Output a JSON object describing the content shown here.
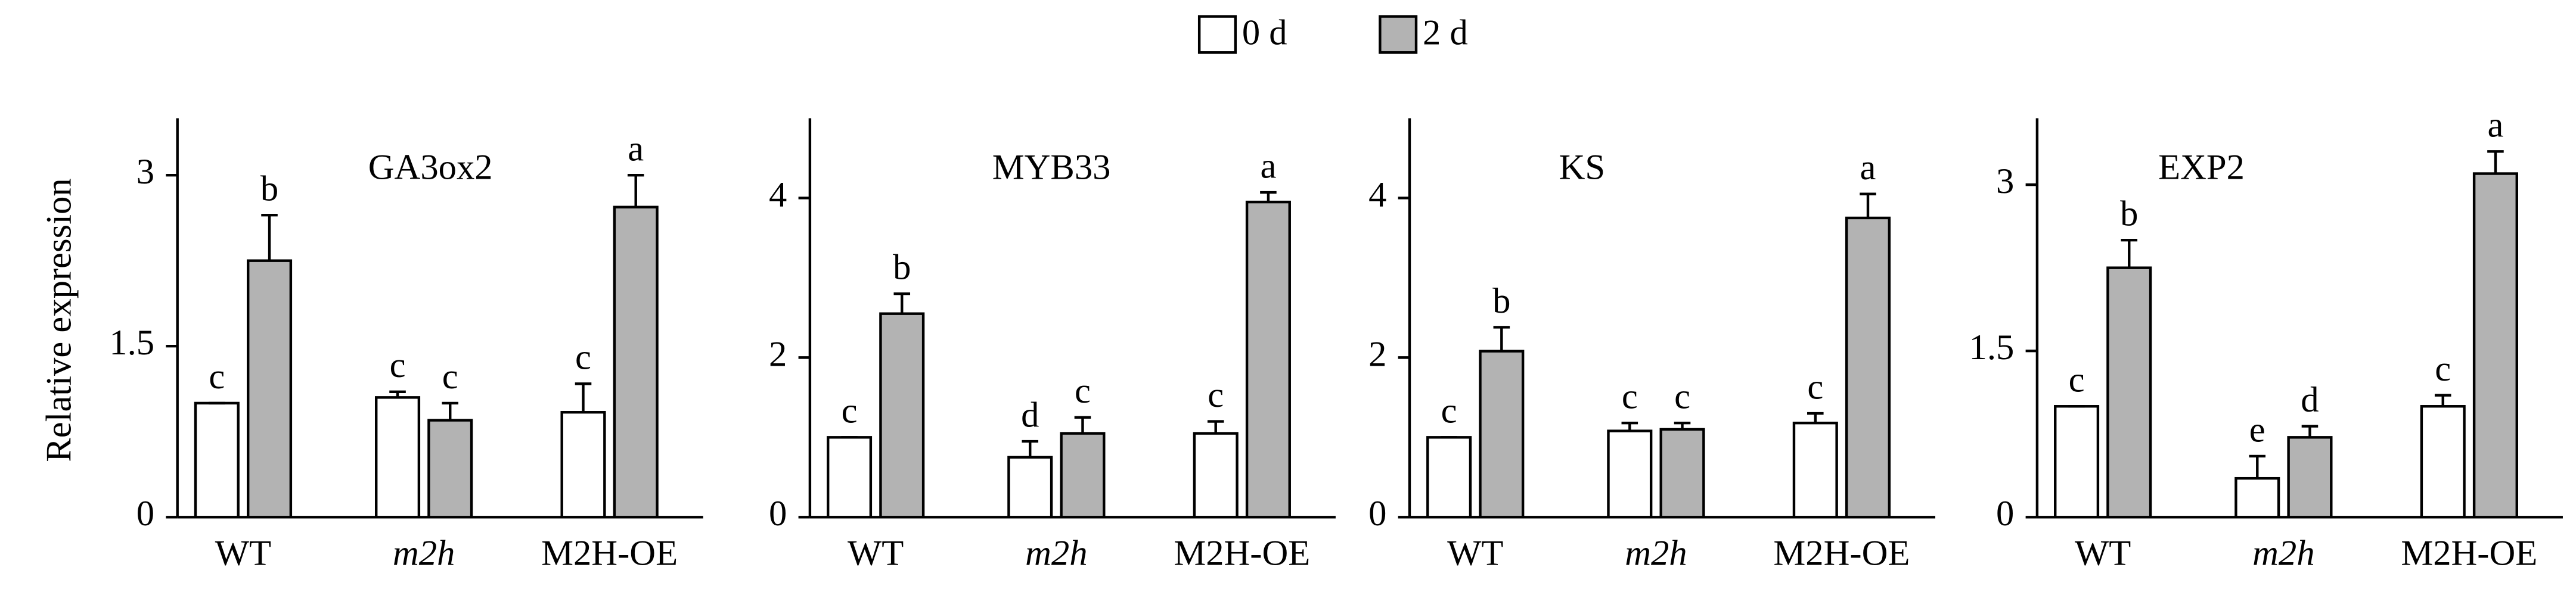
{
  "chart_data": [
    {
      "type": "bar",
      "title": "GA3ox2",
      "y_label": "Relative expression",
      "categories": [
        "WT",
        "m2h",
        "M2H-OE"
      ],
      "ylim": [
        0,
        3.5
      ],
      "yticks": [
        0,
        1.5,
        3
      ],
      "series": [
        {
          "name": "0 d",
          "color": "#ffffff",
          "values": [
            1.0,
            1.05,
            0.92
          ],
          "errors": [
            0,
            0.05,
            0.25
          ],
          "letters": [
            "c",
            "c",
            "c"
          ]
        },
        {
          "name": "2 d",
          "color": "#b3b3b3",
          "values": [
            2.25,
            0.85,
            2.72
          ],
          "errors": [
            0.4,
            0.15,
            0.28
          ],
          "letters": [
            "b",
            "c",
            "a"
          ]
        }
      ]
    },
    {
      "type": "bar",
      "title": "MYB33",
      "categories": [
        "WT",
        "m2h",
        "M2H-OE"
      ],
      "ylim": [
        0,
        5
      ],
      "yticks": [
        0,
        2,
        4
      ],
      "series": [
        {
          "color": "#ffffff",
          "values": [
            1.0,
            0.75,
            1.05
          ],
          "errors": [
            0,
            0.2,
            0.15
          ],
          "letters": [
            "c",
            "d",
            "c"
          ]
        },
        {
          "color": "#b3b3b3",
          "values": [
            2.55,
            1.05,
            3.95
          ],
          "errors": [
            0.25,
            0.2,
            0.12
          ],
          "letters": [
            "b",
            "c",
            "a"
          ]
        }
      ]
    },
    {
      "type": "bar",
      "title": "KS",
      "categories": [
        "WT",
        "m2h",
        "M2H-OE"
      ],
      "ylim": [
        0,
        5
      ],
      "yticks": [
        0,
        2,
        4
      ],
      "series": [
        {
          "color": "#ffffff",
          "values": [
            1.0,
            1.08,
            1.18
          ],
          "errors": [
            0,
            0.1,
            0.12
          ],
          "letters": [
            "c",
            "c",
            "c"
          ]
        },
        {
          "color": "#b3b3b3",
          "values": [
            2.08,
            1.1,
            3.75
          ],
          "errors": [
            0.3,
            0.08,
            0.3
          ],
          "letters": [
            "b",
            "c",
            "a"
          ]
        }
      ]
    },
    {
      "type": "bar",
      "title": "EXP2",
      "categories": [
        "WT",
        "m2h",
        "M2H-OE"
      ],
      "ylim": [
        0,
        3.6
      ],
      "yticks": [
        0,
        1.5,
        3
      ],
      "series": [
        {
          "color": "#ffffff",
          "values": [
            1.0,
            0.35,
            1.0
          ],
          "errors": [
            0,
            0.2,
            0.1
          ],
          "letters": [
            "c",
            "e",
            "c"
          ]
        },
        {
          "color": "#b3b3b3",
          "values": [
            2.25,
            0.72,
            3.1
          ],
          "errors": [
            0.25,
            0.1,
            0.2
          ],
          "letters": [
            "b",
            "d",
            "a"
          ]
        }
      ]
    }
  ]
}
